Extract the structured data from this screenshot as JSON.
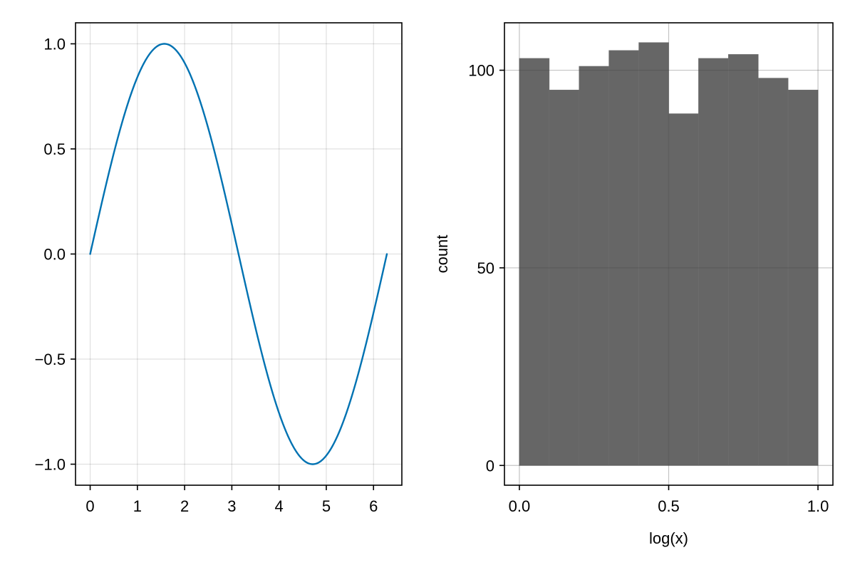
{
  "chart_data": [
    {
      "type": "line",
      "title": "",
      "xlabel": "",
      "ylabel": "",
      "xlim": [
        -0.31,
        6.6
      ],
      "ylim": [
        -1.1,
        1.1
      ],
      "x_ticks": [
        0,
        1,
        2,
        3,
        4,
        5,
        6
      ],
      "x_tick_labels": [
        "0",
        "1",
        "2",
        "3",
        "4",
        "5",
        "6"
      ],
      "y_ticks": [
        -1.0,
        -0.5,
        0.0,
        0.5,
        1.0
      ],
      "y_tick_labels": [
        "−1.0",
        "−0.5",
        "0.0",
        "0.5",
        "1.0"
      ],
      "grid": true,
      "series": [
        {
          "function": "sin(x)",
          "x_range": [
            0,
            6.283
          ],
          "color": "#0072b2"
        }
      ]
    },
    {
      "type": "bar",
      "title": "",
      "xlabel": "log(x)",
      "ylabel": "count",
      "xlim": [
        -0.05,
        1.05
      ],
      "ylim": [
        -5,
        112
      ],
      "x_ticks": [
        0.0,
        0.5,
        1.0
      ],
      "x_tick_labels": [
        "0.0",
        "0.5",
        "1.0"
      ],
      "y_ticks": [
        0,
        50,
        100
      ],
      "y_tick_labels": [
        "0",
        "50",
        "100"
      ],
      "grid": true,
      "bin_edges": [
        0.0,
        0.1,
        0.2,
        0.3,
        0.4,
        0.5,
        0.6,
        0.7,
        0.8,
        0.9,
        1.0
      ],
      "values": [
        103,
        95,
        101,
        105,
        107,
        89,
        103,
        104,
        98,
        95
      ],
      "color": "#666666"
    }
  ]
}
